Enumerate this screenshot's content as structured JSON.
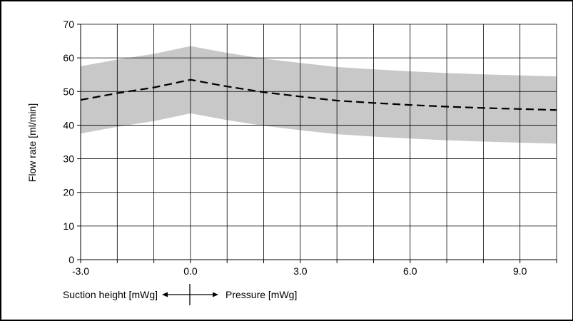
{
  "chart_data": {
    "type": "line",
    "ylabel": "Flow rate [ml/min]",
    "x_tick_labels": [
      "-3.0",
      "0.0",
      "3.0",
      "6.0",
      "9.0"
    ],
    "y_tick_labels": [
      "0",
      "10",
      "20",
      "30",
      "40",
      "50",
      "60",
      "70"
    ],
    "xlim": [
      -3.0,
      10.0
    ],
    "ylim": [
      0,
      70
    ],
    "grid": true,
    "x_gridlines": [
      -3,
      -2,
      -1,
      0,
      1,
      2,
      3,
      4,
      5,
      6,
      7,
      8,
      9,
      10
    ],
    "y_gridlines": [
      10,
      20,
      30,
      40,
      50,
      60,
      70
    ],
    "series": [
      {
        "style": "dashed",
        "color": "#000000",
        "x": [
          -3.0,
          -2.0,
          -1.0,
          0.0,
          1.0,
          2.0,
          3.0,
          4.0,
          5.0,
          6.0,
          7.0,
          8.0,
          9.0,
          10.0
        ],
        "y": [
          47.5,
          49.5,
          51.2,
          53.5,
          51.5,
          49.8,
          48.5,
          47.3,
          46.6,
          46.0,
          45.5,
          45.1,
          44.8,
          44.5
        ]
      }
    ],
    "band": {
      "color": "#c8c8c8",
      "x": [
        -3.0,
        -2.0,
        -1.0,
        0.0,
        1.0,
        2.0,
        3.0,
        4.0,
        5.0,
        6.0,
        7.0,
        8.0,
        9.0,
        10.0
      ],
      "upper": [
        57.5,
        59.5,
        61.2,
        63.5,
        61.5,
        59.8,
        58.5,
        57.3,
        56.6,
        56.0,
        55.5,
        55.1,
        54.8,
        54.5
      ],
      "lower": [
        37.5,
        39.5,
        41.2,
        43.5,
        41.5,
        39.8,
        38.5,
        37.3,
        36.6,
        36.0,
        35.5,
        35.1,
        34.8,
        34.5
      ]
    },
    "direction_legend": {
      "left_label": "Suction height [mWg]",
      "right_label": "Pressure [mWg]"
    }
  }
}
